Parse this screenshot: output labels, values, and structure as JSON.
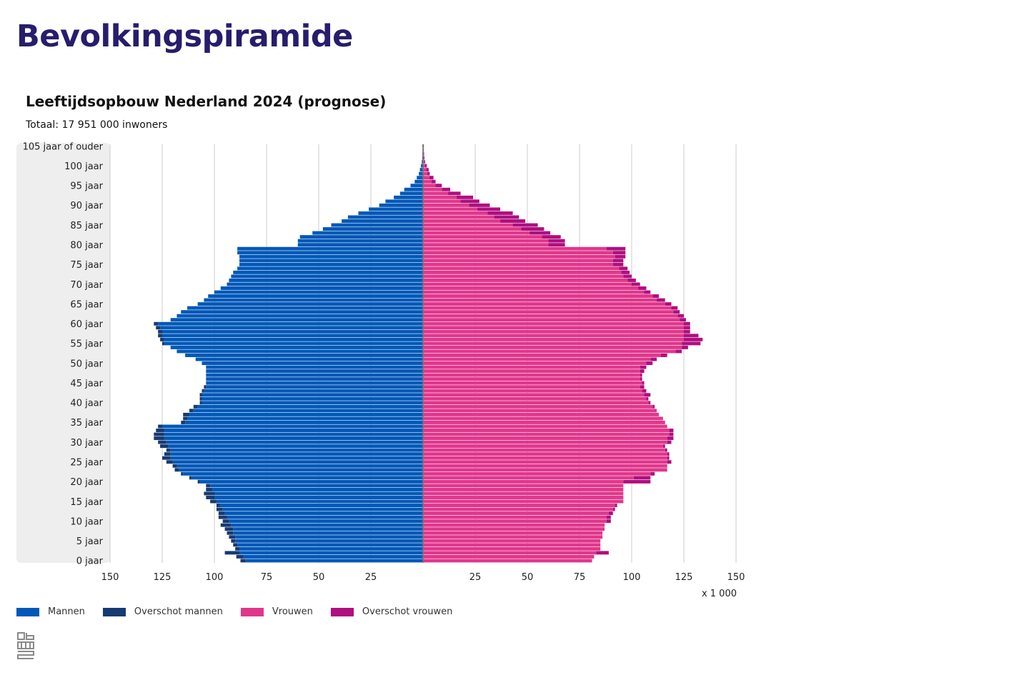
{
  "page": {
    "title": "Bevolkingspiramide"
  },
  "legend": {
    "items": [
      {
        "key": "mannen",
        "label": "Mannen",
        "color": "#0058b8"
      },
      {
        "key": "overschot-mannen",
        "label": "Overschot mannen",
        "color": "#163a72"
      },
      {
        "key": "vrouwen",
        "label": "Vrouwen",
        "color": "#e0378c"
      },
      {
        "key": "overschot-vrouwen",
        "label": "Overschot vrouwen",
        "color": "#af0f7f"
      }
    ]
  },
  "logo": {
    "name": "cbs-logo-icon",
    "text": "cbs"
  },
  "chart_data": {
    "type": "bar",
    "orientation": "horizontal",
    "title": "Leeftijdsopbouw Nederland 2024 (prognose)",
    "subtitle": "Totaal: 17 951 000 inwoners",
    "unit_label": "x 1 000",
    "x_ticks_left": [
      "150",
      "125",
      "100",
      "75",
      "50",
      "25"
    ],
    "x_ticks_right": [
      "25",
      "50",
      "75",
      "100",
      "125",
      "150"
    ],
    "xlim": [
      0,
      150
    ],
    "grid": true,
    "legend_position": "bottom-left",
    "y_labels": [
      {
        "age": 105,
        "label": "105 jaar of ouder"
      },
      {
        "age": 100,
        "label": "100 jaar"
      },
      {
        "age": 95,
        "label": "95 jaar"
      },
      {
        "age": 90,
        "label": "90 jaar"
      },
      {
        "age": 85,
        "label": "85 jaar"
      },
      {
        "age": 80,
        "label": "80 jaar"
      },
      {
        "age": 75,
        "label": "75 jaar"
      },
      {
        "age": 70,
        "label": "70 jaar"
      },
      {
        "age": 65,
        "label": "65 jaar"
      },
      {
        "age": 60,
        "label": "60 jaar"
      },
      {
        "age": 55,
        "label": "55 jaar"
      },
      {
        "age": 50,
        "label": "50 jaar"
      },
      {
        "age": 45,
        "label": "45 jaar"
      },
      {
        "age": 40,
        "label": "40 jaar"
      },
      {
        "age": 35,
        "label": "35 jaar"
      },
      {
        "age": 30,
        "label": "30 jaar"
      },
      {
        "age": 25,
        "label": "25 jaar"
      },
      {
        "age": 20,
        "label": "20 jaar"
      },
      {
        "age": 15,
        "label": "15 jaar"
      },
      {
        "age": 10,
        "label": "10 jaar"
      },
      {
        "age": 5,
        "label": "5 jaar"
      },
      {
        "age": 0,
        "label": "0 jaar"
      }
    ],
    "ages": [
      0,
      1,
      2,
      3,
      4,
      5,
      6,
      7,
      8,
      9,
      10,
      11,
      12,
      13,
      14,
      15,
      16,
      17,
      18,
      19,
      20,
      21,
      22,
      23,
      24,
      25,
      26,
      27,
      28,
      29,
      30,
      31,
      32,
      33,
      34,
      35,
      36,
      37,
      38,
      39,
      40,
      41,
      42,
      43,
      44,
      45,
      46,
      47,
      48,
      49,
      50,
      51,
      52,
      53,
      54,
      55,
      56,
      57,
      58,
      59,
      60,
      61,
      62,
      63,
      64,
      65,
      66,
      67,
      68,
      69,
      70,
      71,
      72,
      73,
      74,
      75,
      76,
      77,
      78,
      79,
      80,
      81,
      82,
      83,
      84,
      85,
      86,
      87,
      88,
      89,
      90,
      91,
      92,
      93,
      94,
      95,
      96,
      97,
      98,
      99,
      100,
      101,
      102,
      103,
      104,
      105
    ],
    "series": [
      {
        "name": "Mannen",
        "values": [
          85,
          86,
          88,
          88,
          89,
          90,
          90,
          91,
          91,
          92,
          93,
          94,
          95,
          96,
          97,
          99,
          100,
          100,
          101,
          102,
          107,
          111,
          115,
          117,
          118,
          120,
          121,
          121,
          121,
          122,
          123,
          124,
          124,
          124,
          125,
          114,
          113,
          112,
          110,
          108,
          106,
          106,
          106,
          105,
          104,
          104,
          104,
          104,
          104,
          104,
          106,
          109,
          114,
          118,
          121,
          124,
          124,
          125,
          125,
          126,
          127,
          121,
          118,
          116,
          113,
          108,
          105,
          103,
          100,
          97,
          94,
          93,
          92,
          91,
          89,
          88,
          88,
          88,
          89,
          89,
          60,
          60,
          59,
          53,
          48,
          44,
          39,
          36,
          31,
          26,
          21,
          18,
          14,
          11,
          9,
          6,
          4,
          3,
          2,
          1.5,
          1,
          0.6,
          0.4,
          0.3,
          0.2,
          0.3
        ],
        "color": "#0058b8"
      },
      {
        "name": "Overschot mannen",
        "values": [
          2.5,
          3.5,
          7,
          2,
          2,
          2,
          3,
          3,
          4,
          5,
          3,
          4,
          3,
          3,
          2,
          3,
          4,
          5,
          3,
          2,
          1,
          1,
          1,
          2,
          2,
          3,
          4,
          3,
          2,
          4,
          4,
          5,
          5,
          4,
          2,
          2,
          2,
          3,
          2,
          2,
          1,
          1,
          1,
          1,
          1,
          0,
          0,
          0,
          0,
          0,
          0,
          0,
          0,
          0,
          0,
          1,
          2,
          2,
          2,
          2,
          2,
          0,
          0,
          0,
          0,
          0,
          0,
          0,
          0,
          0,
          0,
          0,
          0,
          0,
          0,
          0,
          0,
          0,
          0,
          0,
          0,
          0,
          0,
          0,
          0,
          0,
          0,
          0,
          0,
          0,
          0,
          0,
          0,
          0,
          0,
          0,
          0,
          0,
          0,
          0,
          0,
          0,
          0,
          0,
          0,
          0
        ],
        "color": "#163a72"
      },
      {
        "name": "Vrouwen",
        "values": [
          81,
          82,
          83,
          85,
          85,
          85,
          86,
          86,
          87,
          87,
          88,
          88,
          89,
          91,
          92,
          96,
          96,
          96,
          96,
          96,
          96,
          101,
          109,
          117,
          117,
          117,
          117,
          117,
          116,
          115,
          117,
          117,
          118,
          118,
          117,
          116,
          115,
          113,
          112,
          110,
          108,
          107,
          106,
          105,
          104,
          105,
          104,
          104,
          104,
          104,
          107,
          109,
          114,
          121,
          124,
          124,
          125,
          125,
          125,
          125,
          125,
          123,
          122,
          120,
          119,
          116,
          112,
          110,
          106,
          103,
          100,
          98,
          96,
          95,
          94,
          91,
          91,
          92,
          91,
          88,
          60,
          60,
          57,
          51,
          47,
          43,
          37,
          34,
          31,
          26,
          22,
          18,
          16,
          12,
          9,
          6,
          4,
          3,
          2,
          1.5,
          1,
          0.6,
          0.4,
          0.3,
          0.2,
          0.3
        ],
        "color": "#e0378c"
      },
      {
        "name": "Overschot vrouwen",
        "values": [
          0,
          0,
          6,
          0,
          0,
          0,
          0,
          0,
          0,
          0,
          2,
          2,
          2,
          1,
          1,
          0,
          0,
          0,
          0,
          0,
          13,
          8,
          2,
          0,
          0,
          2,
          1,
          1,
          1,
          1,
          2,
          3,
          2,
          2,
          0,
          0,
          0,
          0,
          0,
          1,
          1,
          1,
          3,
          2,
          2,
          1,
          1,
          1,
          2,
          3,
          3,
          3,
          3,
          3,
          3,
          9,
          9,
          7,
          3,
          3,
          3,
          3,
          3,
          3,
          3,
          3,
          4,
          3,
          3,
          4,
          4,
          4,
          4,
          4,
          4,
          5,
          5,
          5,
          6,
          9,
          8,
          8,
          9,
          10,
          11,
          12,
          12,
          12,
          12,
          11,
          10,
          9,
          8,
          6,
          4,
          3,
          2,
          2,
          1.2,
          1.2,
          0.8,
          0.4,
          0.3,
          0.2,
          0.2,
          0.1
        ],
        "color": "#af0f7f"
      }
    ]
  }
}
